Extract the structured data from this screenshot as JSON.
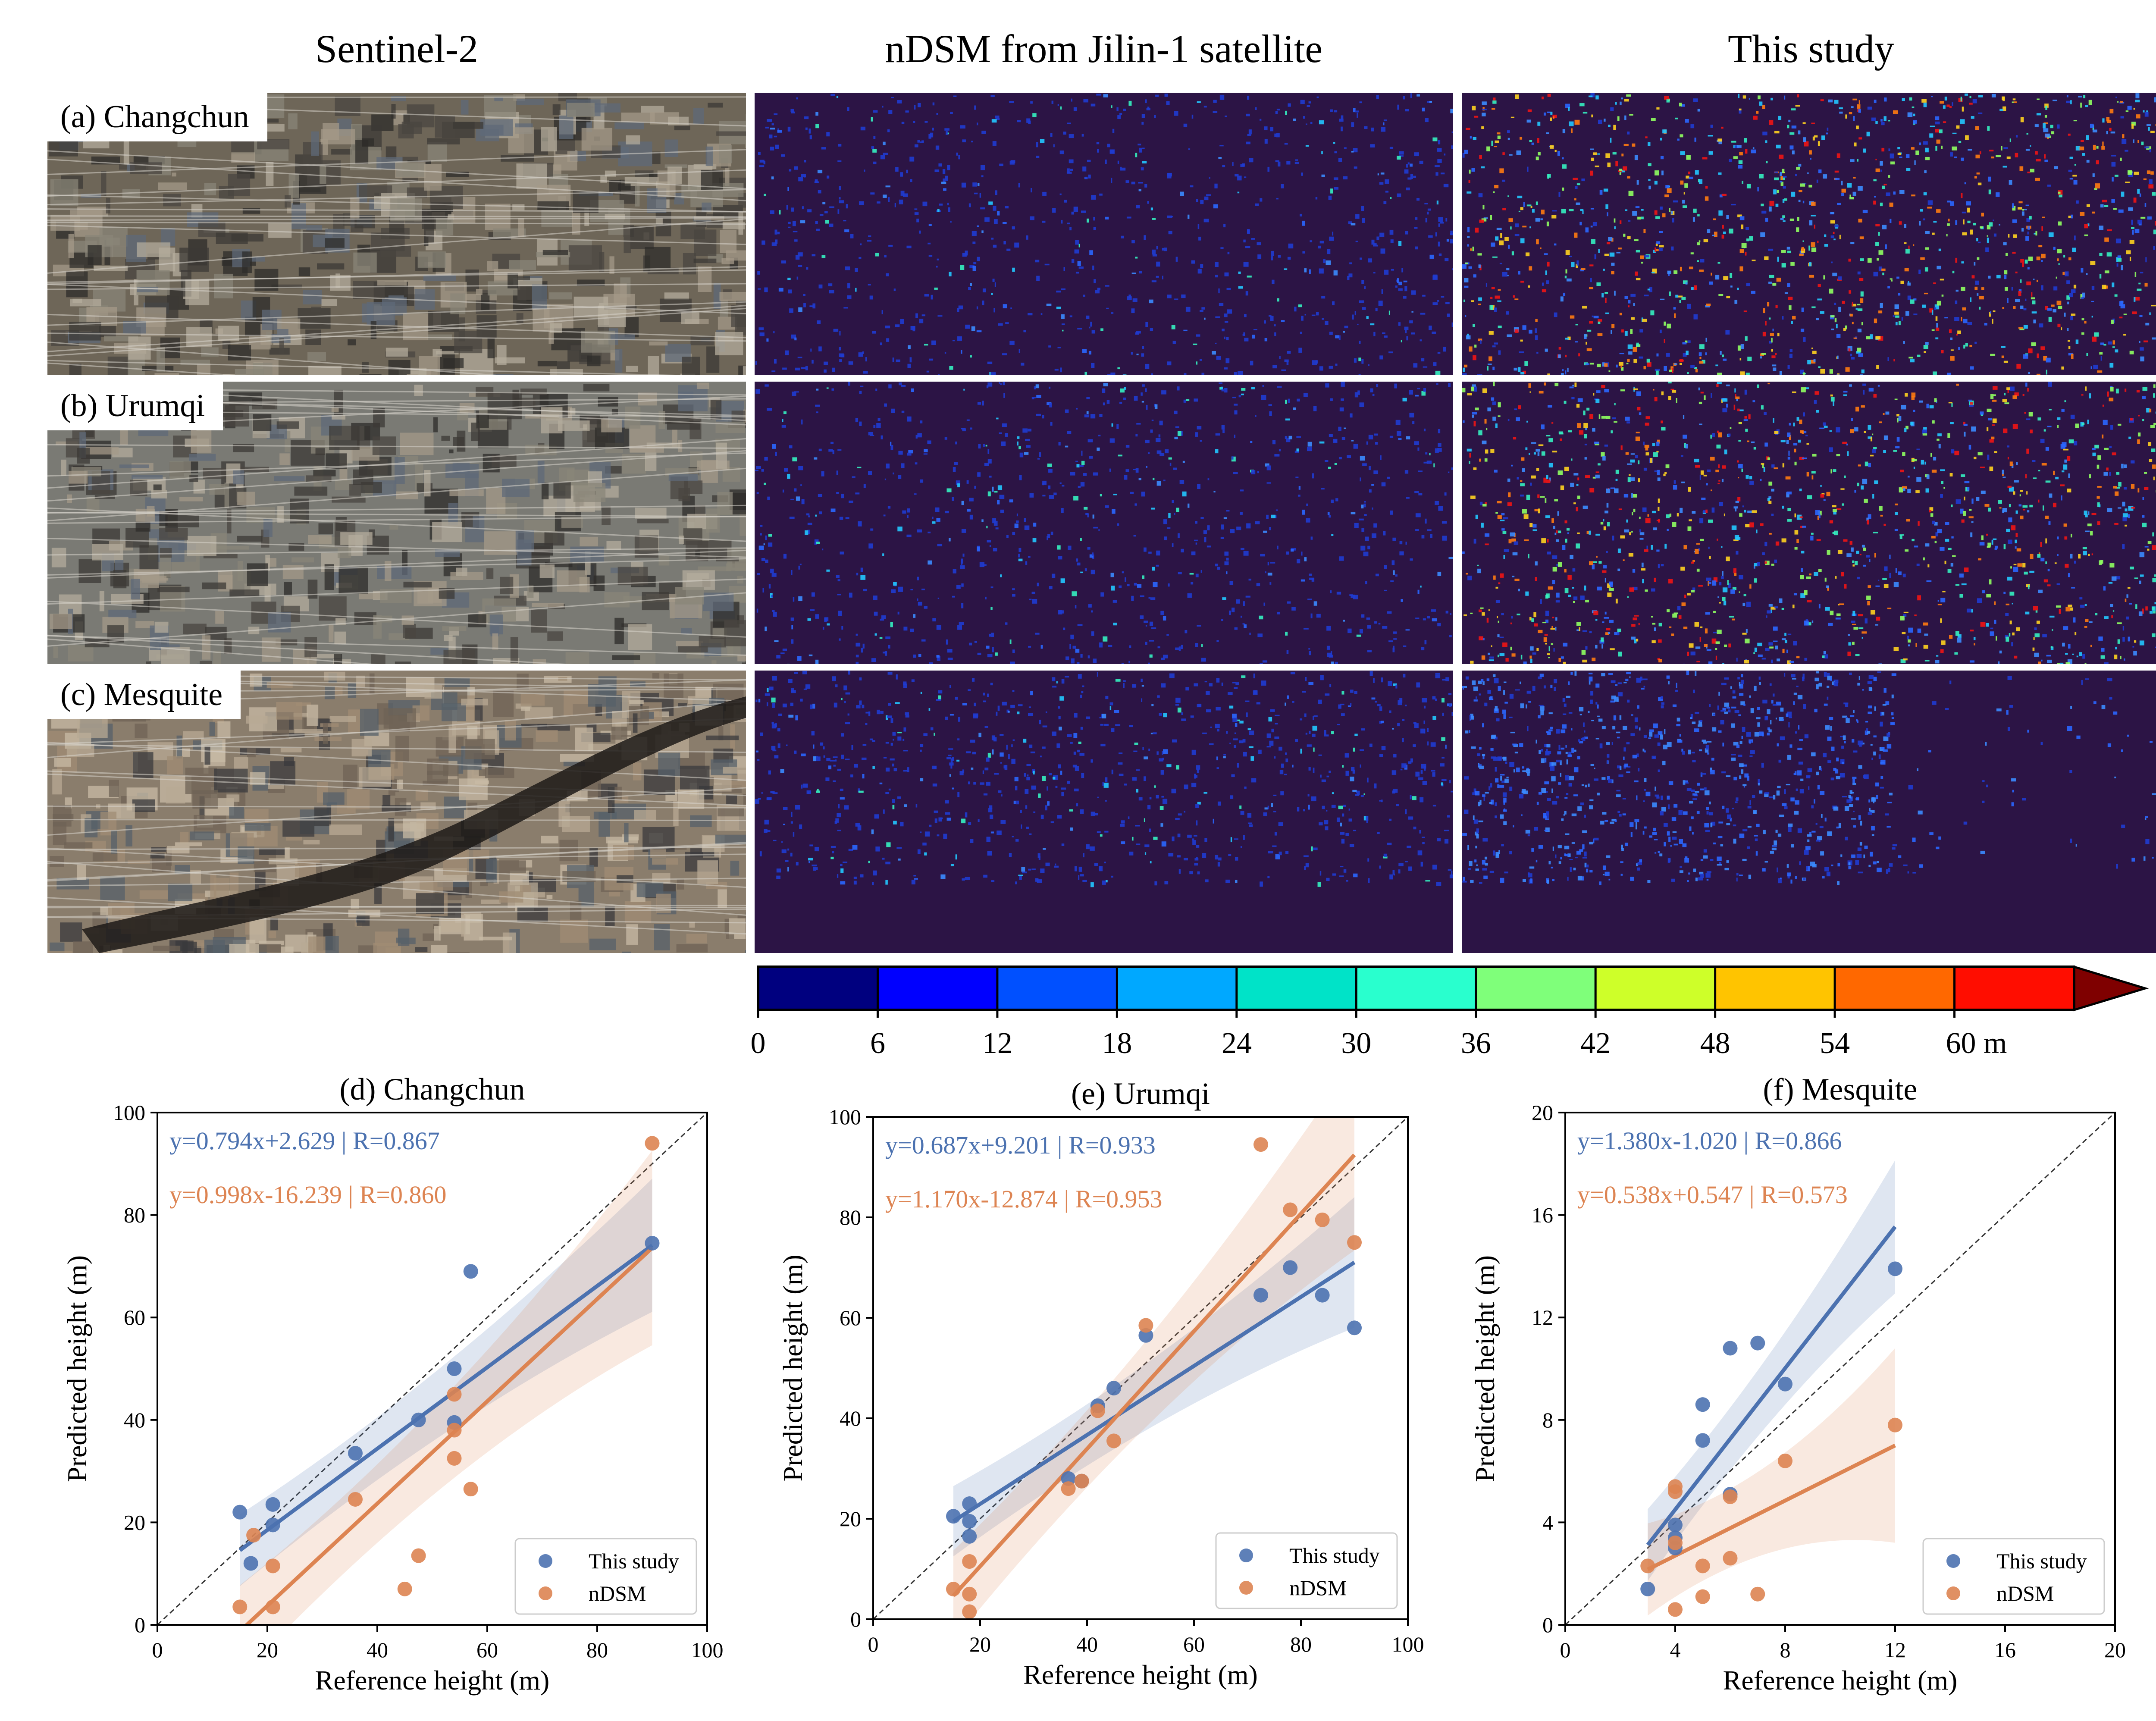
{
  "maps": {
    "columns": [
      "Sentinel-2",
      "nDSM from Jilin-1 satellite",
      "This study"
    ],
    "rows": [
      {
        "label": "(a) Changchun"
      },
      {
        "label": "(b) Urumqi"
      },
      {
        "label": "(c) Mesquite"
      }
    ]
  },
  "colorbar": {
    "ticks": [
      "0",
      "6",
      "12",
      "18",
      "24",
      "30",
      "36",
      "42",
      "48",
      "54",
      "60 m"
    ],
    "colors": [
      "#00007f",
      "#0000ff",
      "#0050ff",
      "#00a8ff",
      "#00e3c8",
      "#29ffce",
      "#7fff7a",
      "#ceff29",
      "#ffc400",
      "#ff6800",
      "#ff0d00"
    ],
    "over_color": "#7f0000"
  },
  "chart_data": [
    {
      "type": "scatter",
      "title": "(d) Changchun",
      "xlabel": "Reference height (m)",
      "ylabel": "Predicted height (m)",
      "xlim": [
        0,
        100
      ],
      "ylim": [
        0,
        100
      ],
      "xticks": [
        "0",
        "20",
        "40",
        "60",
        "80",
        "100"
      ],
      "yticks": [
        "0",
        "20",
        "40",
        "60",
        "80",
        "100"
      ],
      "legend_position": "bottom-right",
      "series": [
        {
          "name": "This study",
          "color": "#4c72b0",
          "equation": "y=0.794x+2.629 | R=0.867",
          "slope": 0.794,
          "intercept": 2.629,
          "fit_x": [
            15,
            90
          ],
          "points": [
            [
              15,
              22
            ],
            [
              17,
              12
            ],
            [
              21,
              23.5
            ],
            [
              21,
              19.5
            ],
            [
              36,
              33.5
            ],
            [
              47.5,
              40
            ],
            [
              54,
              50
            ],
            [
              54,
              39.5
            ],
            [
              57,
              69
            ],
            [
              90,
              74.5
            ]
          ]
        },
        {
          "name": "nDSM",
          "color": "#dd8452",
          "equation": "y=0.998x-16.239 | R=0.860",
          "slope": 0.998,
          "intercept": -16.239,
          "fit_x": [
            15,
            90
          ],
          "points": [
            [
              15,
              3.5
            ],
            [
              17.5,
              17.5
            ],
            [
              21,
              11.5
            ],
            [
              21,
              3.5
            ],
            [
              36,
              24.5
            ],
            [
              45,
              7
            ],
            [
              47.5,
              13.5
            ],
            [
              54,
              45
            ],
            [
              54,
              38
            ],
            [
              54,
              32.5
            ],
            [
              57,
              26.5
            ],
            [
              90,
              94
            ]
          ]
        }
      ]
    },
    {
      "type": "scatter",
      "title": "(e) Urumqi",
      "xlabel": "Reference height (m)",
      "ylabel": "Predicted height (m)",
      "xlim": [
        0,
        100
      ],
      "ylim": [
        0,
        100
      ],
      "xticks": [
        "0",
        "20",
        "40",
        "60",
        "80",
        "100"
      ],
      "yticks": [
        "0",
        "20",
        "40",
        "60",
        "80",
        "100"
      ],
      "legend_position": "bottom-right",
      "series": [
        {
          "name": "This study",
          "color": "#4c72b0",
          "equation": "y=0.687x+9.201 | R=0.933",
          "slope": 0.687,
          "intercept": 9.201,
          "fit_x": [
            15,
            90
          ],
          "points": [
            [
              15,
              20.5
            ],
            [
              18,
              23
            ],
            [
              18,
              19.5
            ],
            [
              18,
              16.5
            ],
            [
              36.5,
              28
            ],
            [
              39,
              27.5
            ],
            [
              42,
              42.5
            ],
            [
              45,
              46
            ],
            [
              51,
              56.5
            ],
            [
              72.5,
              64.5
            ],
            [
              78,
              70
            ],
            [
              84,
              64.5
            ],
            [
              90,
              58
            ]
          ]
        },
        {
          "name": "nDSM",
          "color": "#dd8452",
          "equation": "y=1.170x-12.874 | R=0.953",
          "slope": 1.17,
          "intercept": -12.874,
          "fit_x": [
            15,
            90
          ],
          "points": [
            [
              15,
              6
            ],
            [
              18,
              11.5
            ],
            [
              18,
              5
            ],
            [
              18,
              1.5
            ],
            [
              36.5,
              26
            ],
            [
              39,
              27.5
            ],
            [
              42,
              41.5
            ],
            [
              45,
              35.5
            ],
            [
              51,
              58.5
            ],
            [
              72.5,
              94.5
            ],
            [
              78,
              81.5
            ],
            [
              84,
              79.5
            ],
            [
              90,
              75
            ]
          ]
        }
      ]
    },
    {
      "type": "scatter",
      "title": "(f) Mesquite",
      "xlabel": "Reference height (m)",
      "ylabel": "Predicted height (m)",
      "xlim": [
        0,
        20
      ],
      "ylim": [
        0,
        20
      ],
      "xticks": [
        "0",
        "4",
        "8",
        "12",
        "16",
        "20"
      ],
      "yticks": [
        "0",
        "4",
        "8",
        "12",
        "16",
        "20"
      ],
      "legend_position": "bottom-right",
      "series": [
        {
          "name": "This study",
          "color": "#4c72b0",
          "equation": "y=1.380x-1.020 | R=0.866",
          "slope": 1.38,
          "intercept": -1.02,
          "fit_x": [
            3,
            12
          ],
          "points": [
            [
              3,
              1.4
            ],
            [
              4,
              3.9
            ],
            [
              4,
              3.4
            ],
            [
              4,
              3.0
            ],
            [
              5,
              8.6
            ],
            [
              5,
              7.2
            ],
            [
              6,
              10.8
            ],
            [
              6,
              5.1
            ],
            [
              7,
              11.0
            ],
            [
              8,
              9.4
            ],
            [
              12,
              13.9
            ]
          ]
        },
        {
          "name": "nDSM",
          "color": "#dd8452",
          "equation": "y=0.538x+0.547 | R=0.573",
          "slope": 0.538,
          "intercept": 0.547,
          "fit_x": [
            3,
            12
          ],
          "points": [
            [
              3,
              2.3
            ],
            [
              4,
              5.4
            ],
            [
              4,
              5.2
            ],
            [
              4,
              3.2
            ],
            [
              4,
              0.6
            ],
            [
              5,
              2.3
            ],
            [
              5,
              1.1
            ],
            [
              6,
              5.0
            ],
            [
              6,
              2.6
            ],
            [
              7,
              1.2
            ],
            [
              8,
              6.4
            ],
            [
              12,
              7.8
            ]
          ]
        }
      ]
    }
  ]
}
